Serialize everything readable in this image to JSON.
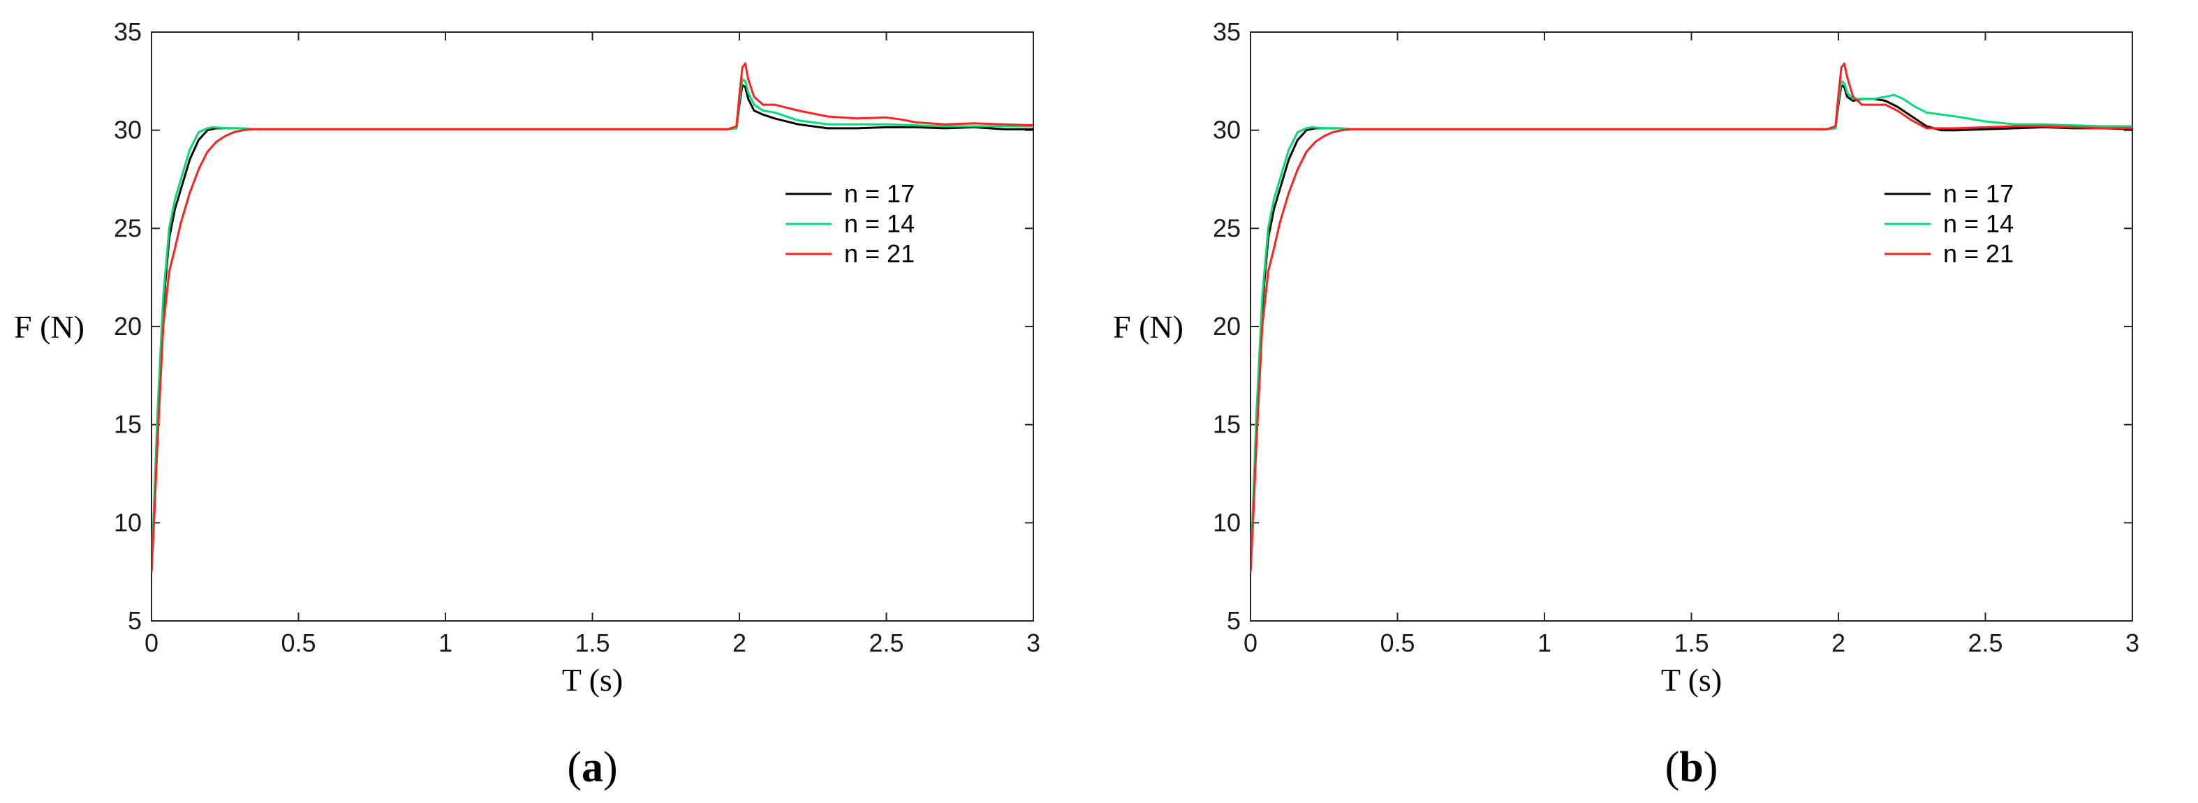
{
  "chart_data": [
    {
      "type": "line",
      "caption_open": "(",
      "caption_letter": "a",
      "caption_close": ")",
      "xlabel": "T (s)",
      "ylabel": "F (N)",
      "xlim": [
        0,
        3
      ],
      "ylim": [
        5,
        35
      ],
      "xticks": [
        0,
        0.5,
        1,
        1.5,
        2,
        2.5,
        3
      ],
      "xtick_labels": [
        "0",
        "0.5",
        "1",
        "1.5",
        "2",
        "2.5",
        "3"
      ],
      "yticks": [
        5,
        10,
        15,
        20,
        25,
        30,
        35
      ],
      "ytick_labels": [
        "5",
        "10",
        "15",
        "20",
        "25",
        "30",
        "35"
      ],
      "grid": false,
      "legend_position": "right",
      "series": [
        {
          "name": "n = 17",
          "color": "#000000",
          "x": [
            0,
            0.01,
            0.02,
            0.04,
            0.06,
            0.08,
            0.1,
            0.13,
            0.16,
            0.19,
            0.22,
            0.25,
            0.3,
            0.35,
            0.5,
            1,
            1.5,
            1.96,
            1.99,
            2.0,
            2.01,
            2.02,
            2.03,
            2.05,
            2.08,
            2.12,
            2.2,
            2.3,
            2.4,
            2.5,
            2.6,
            2.7,
            2.8,
            2.9,
            3.0
          ],
          "y": [
            7.5,
            11,
            15,
            21,
            24.5,
            26,
            27,
            28.5,
            29.5,
            30,
            30.1,
            30.1,
            30.1,
            30.05,
            30.05,
            30.05,
            30.05,
            30.05,
            30.1,
            31.3,
            32.3,
            32.2,
            31.6,
            31.0,
            30.8,
            30.6,
            30.3,
            30.1,
            30.1,
            30.15,
            30.15,
            30.1,
            30.15,
            30.05,
            30.05
          ]
        },
        {
          "name": "n = 14",
          "color": "#00dd77",
          "x": [
            0,
            0.01,
            0.02,
            0.04,
            0.06,
            0.08,
            0.1,
            0.13,
            0.16,
            0.19,
            0.21,
            0.25,
            0.3,
            0.35,
            0.5,
            1,
            1.5,
            1.96,
            1.99,
            2.0,
            2.01,
            2.02,
            2.03,
            2.05,
            2.08,
            2.12,
            2.2,
            2.3,
            2.4,
            2.5,
            2.6,
            2.7,
            2.8,
            2.9,
            3.0
          ],
          "y": [
            7.5,
            11.5,
            15.5,
            21.5,
            25,
            26.5,
            27.5,
            29,
            29.9,
            30.1,
            30.15,
            30.1,
            30.1,
            30.05,
            30.05,
            30.05,
            30.05,
            30.05,
            30.1,
            31.5,
            32.6,
            32.5,
            31.9,
            31.3,
            31.0,
            30.9,
            30.5,
            30.3,
            30.3,
            30.3,
            30.25,
            30.2,
            30.2,
            30.2,
            30.2
          ]
        },
        {
          "name": "n = 21",
          "color": "#ff2020",
          "x": [
            0,
            0.01,
            0.02,
            0.04,
            0.06,
            0.08,
            0.1,
            0.13,
            0.16,
            0.19,
            0.22,
            0.25,
            0.28,
            0.31,
            0.34,
            0.5,
            1,
            1.5,
            1.96,
            1.99,
            2.0,
            2.01,
            2.02,
            2.03,
            2.05,
            2.08,
            2.12,
            2.2,
            2.3,
            2.4,
            2.5,
            2.55,
            2.6,
            2.7,
            2.8,
            2.9,
            3.0
          ],
          "y": [
            7.5,
            10.5,
            14,
            20,
            22.8,
            24,
            25.3,
            26.8,
            28,
            28.9,
            29.4,
            29.7,
            29.9,
            30.0,
            30.05,
            30.05,
            30.05,
            30.05,
            30.05,
            30.2,
            31.8,
            33.2,
            33.4,
            32.6,
            31.7,
            31.3,
            31.3,
            31.0,
            30.7,
            30.6,
            30.65,
            30.55,
            30.4,
            30.3,
            30.35,
            30.3,
            30.25
          ]
        }
      ]
    },
    {
      "type": "line",
      "caption_open": "(",
      "caption_letter": "b",
      "caption_close": ")",
      "xlabel": "T (s)",
      "ylabel": "F (N)",
      "xlim": [
        0,
        3
      ],
      "ylim": [
        5,
        35
      ],
      "xticks": [
        0,
        0.5,
        1,
        1.5,
        2,
        2.5,
        3
      ],
      "xtick_labels": [
        "0",
        "0.5",
        "1",
        "1.5",
        "2",
        "2.5",
        "3"
      ],
      "yticks": [
        5,
        10,
        15,
        20,
        25,
        30,
        35
      ],
      "ytick_labels": [
        "5",
        "10",
        "15",
        "20",
        "25",
        "30",
        "35"
      ],
      "grid": false,
      "legend_position": "right",
      "series": [
        {
          "name": "n = 17",
          "color": "#000000",
          "x": [
            0,
            0.01,
            0.02,
            0.04,
            0.06,
            0.08,
            0.1,
            0.13,
            0.16,
            0.19,
            0.22,
            0.25,
            0.3,
            0.35,
            0.5,
            1,
            1.5,
            1.96,
            1.99,
            2.0,
            2.01,
            2.02,
            2.03,
            2.05,
            2.08,
            2.12,
            2.16,
            2.2,
            2.25,
            2.3,
            2.35,
            2.4,
            2.5,
            2.6,
            2.7,
            2.8,
            2.9,
            3.0
          ],
          "y": [
            7.5,
            11,
            15,
            21,
            24.5,
            26,
            27,
            28.5,
            29.5,
            30,
            30.1,
            30.1,
            30.1,
            30.05,
            30.05,
            30.05,
            30.05,
            30.05,
            30.1,
            31.3,
            32.3,
            32.2,
            31.7,
            31.5,
            31.6,
            31.6,
            31.5,
            31.2,
            30.7,
            30.2,
            30.0,
            30.0,
            30.05,
            30.1,
            30.15,
            30.1,
            30.1,
            30.05
          ]
        },
        {
          "name": "n = 14",
          "color": "#00dd77",
          "x": [
            0,
            0.01,
            0.02,
            0.04,
            0.06,
            0.08,
            0.1,
            0.13,
            0.16,
            0.19,
            0.21,
            0.25,
            0.3,
            0.35,
            0.5,
            1,
            1.5,
            1.96,
            1.99,
            2.0,
            2.01,
            2.02,
            2.03,
            2.05,
            2.08,
            2.12,
            2.16,
            2.19,
            2.22,
            2.26,
            2.3,
            2.35,
            2.4,
            2.5,
            2.6,
            2.7,
            2.8,
            2.9,
            3.0
          ],
          "y": [
            7.5,
            11.5,
            15.5,
            21.5,
            25,
            26.5,
            27.5,
            29,
            29.9,
            30.1,
            30.15,
            30.1,
            30.1,
            30.05,
            30.05,
            30.05,
            30.05,
            30.05,
            30.1,
            31.5,
            32.5,
            32.4,
            31.9,
            31.6,
            31.6,
            31.6,
            31.7,
            31.8,
            31.6,
            31.2,
            30.9,
            30.8,
            30.7,
            30.45,
            30.3,
            30.3,
            30.25,
            30.2,
            30.2
          ]
        },
        {
          "name": "n = 21",
          "color": "#ff2020",
          "x": [
            0,
            0.01,
            0.02,
            0.04,
            0.06,
            0.08,
            0.1,
            0.13,
            0.16,
            0.19,
            0.22,
            0.25,
            0.28,
            0.31,
            0.34,
            0.5,
            1,
            1.5,
            1.96,
            1.99,
            2.0,
            2.01,
            2.02,
            2.03,
            2.05,
            2.08,
            2.12,
            2.16,
            2.2,
            2.25,
            2.3,
            2.4,
            2.5,
            2.6,
            2.7,
            2.8,
            2.9,
            3.0
          ],
          "y": [
            7.5,
            10.5,
            14,
            20,
            22.8,
            24,
            25.3,
            26.8,
            28,
            28.9,
            29.4,
            29.7,
            29.9,
            30.0,
            30.05,
            30.05,
            30.05,
            30.05,
            30.05,
            30.2,
            31.8,
            33.2,
            33.4,
            32.7,
            31.7,
            31.3,
            31.3,
            31.3,
            31.0,
            30.5,
            30.1,
            30.1,
            30.15,
            30.2,
            30.2,
            30.15,
            30.1,
            30.1
          ]
        }
      ]
    }
  ]
}
